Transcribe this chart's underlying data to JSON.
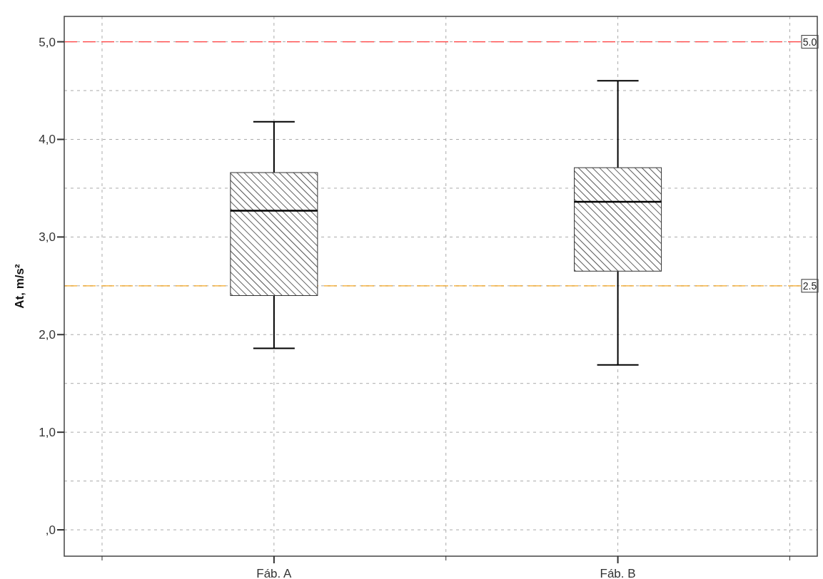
{
  "chart_data": {
    "type": "box",
    "ylabel": "At, m/s²",
    "categories": [
      "Fáb. A",
      "Fáb. B"
    ],
    "series": [
      {
        "color": "#333333",
        "boxes": [
          {
            "low": 1.86,
            "q1": 2.4,
            "median": 3.27,
            "q3": 3.66,
            "high": 4.18
          },
          {
            "low": 1.69,
            "q1": 2.65,
            "median": 3.36,
            "q3": 3.71,
            "high": 4.6
          }
        ]
      }
    ],
    "ylim": [
      -0.27,
      5.26
    ],
    "yticks": [
      {
        "value": 0,
        "label": ",0"
      },
      {
        "value": 0.5,
        "label": null
      },
      {
        "value": 1,
        "label": "1,0"
      },
      {
        "value": 1.5,
        "label": null
      },
      {
        "value": 2,
        "label": "2,0"
      },
      {
        "value": 2.5,
        "label": null
      },
      {
        "value": 3,
        "label": "3,0"
      },
      {
        "value": 3.5,
        "label": null
      },
      {
        "value": 4,
        "label": "4,0"
      },
      {
        "value": 4.5,
        "label": null
      },
      {
        "value": 5,
        "label": "5,0"
      }
    ],
    "ref_lines": [
      {
        "axis": "y",
        "value": 5,
        "label": "5.0",
        "color": "#ff3b3b",
        "line_style": "dashed"
      },
      {
        "axis": "y",
        "value": 2.5,
        "label": "2.5",
        "color": "#f5a623",
        "line_style": "dashed"
      }
    ],
    "grid": true
  }
}
